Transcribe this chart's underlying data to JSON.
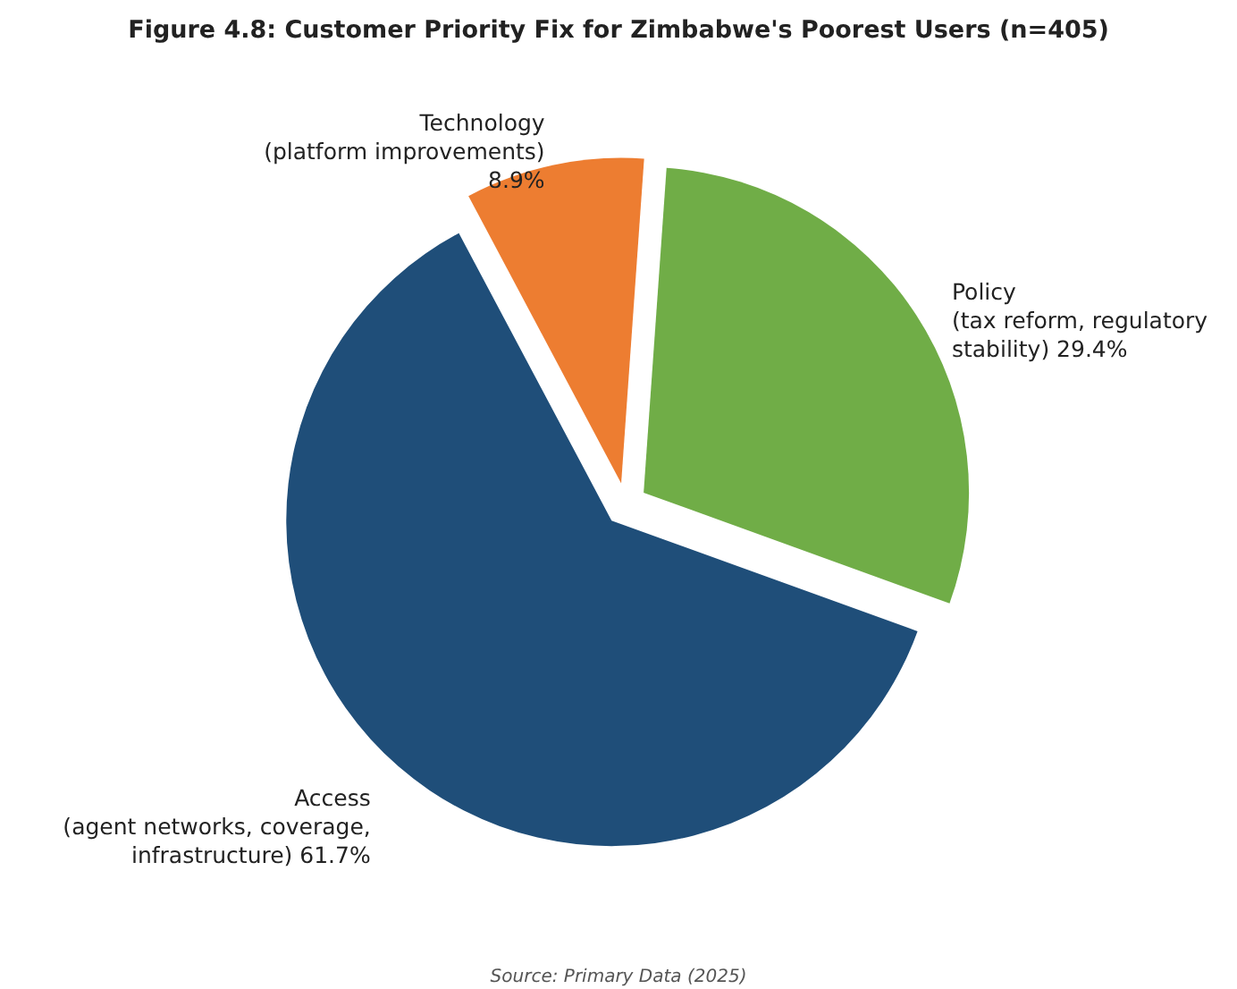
{
  "chart_data": {
    "type": "pie",
    "title": "Figure 4.8: Customer Priority Fix for Zimbabwe's Poorest Users (n=405)",
    "categories": [
      "Access (agent networks, coverage, infrastructure)",
      "Policy (tax reform, regulatory stability)",
      "Technology (platform improvements)"
    ],
    "values": [
      61.7,
      29.4,
      8.9
    ],
    "value_labels": [
      "61.7%",
      "29.4%",
      "8.9%"
    ],
    "colors": [
      "#1f4e79",
      "#70ad47",
      "#ed7d31"
    ],
    "annotations": [
      "Source: Primary Data (2025)"
    ]
  }
}
